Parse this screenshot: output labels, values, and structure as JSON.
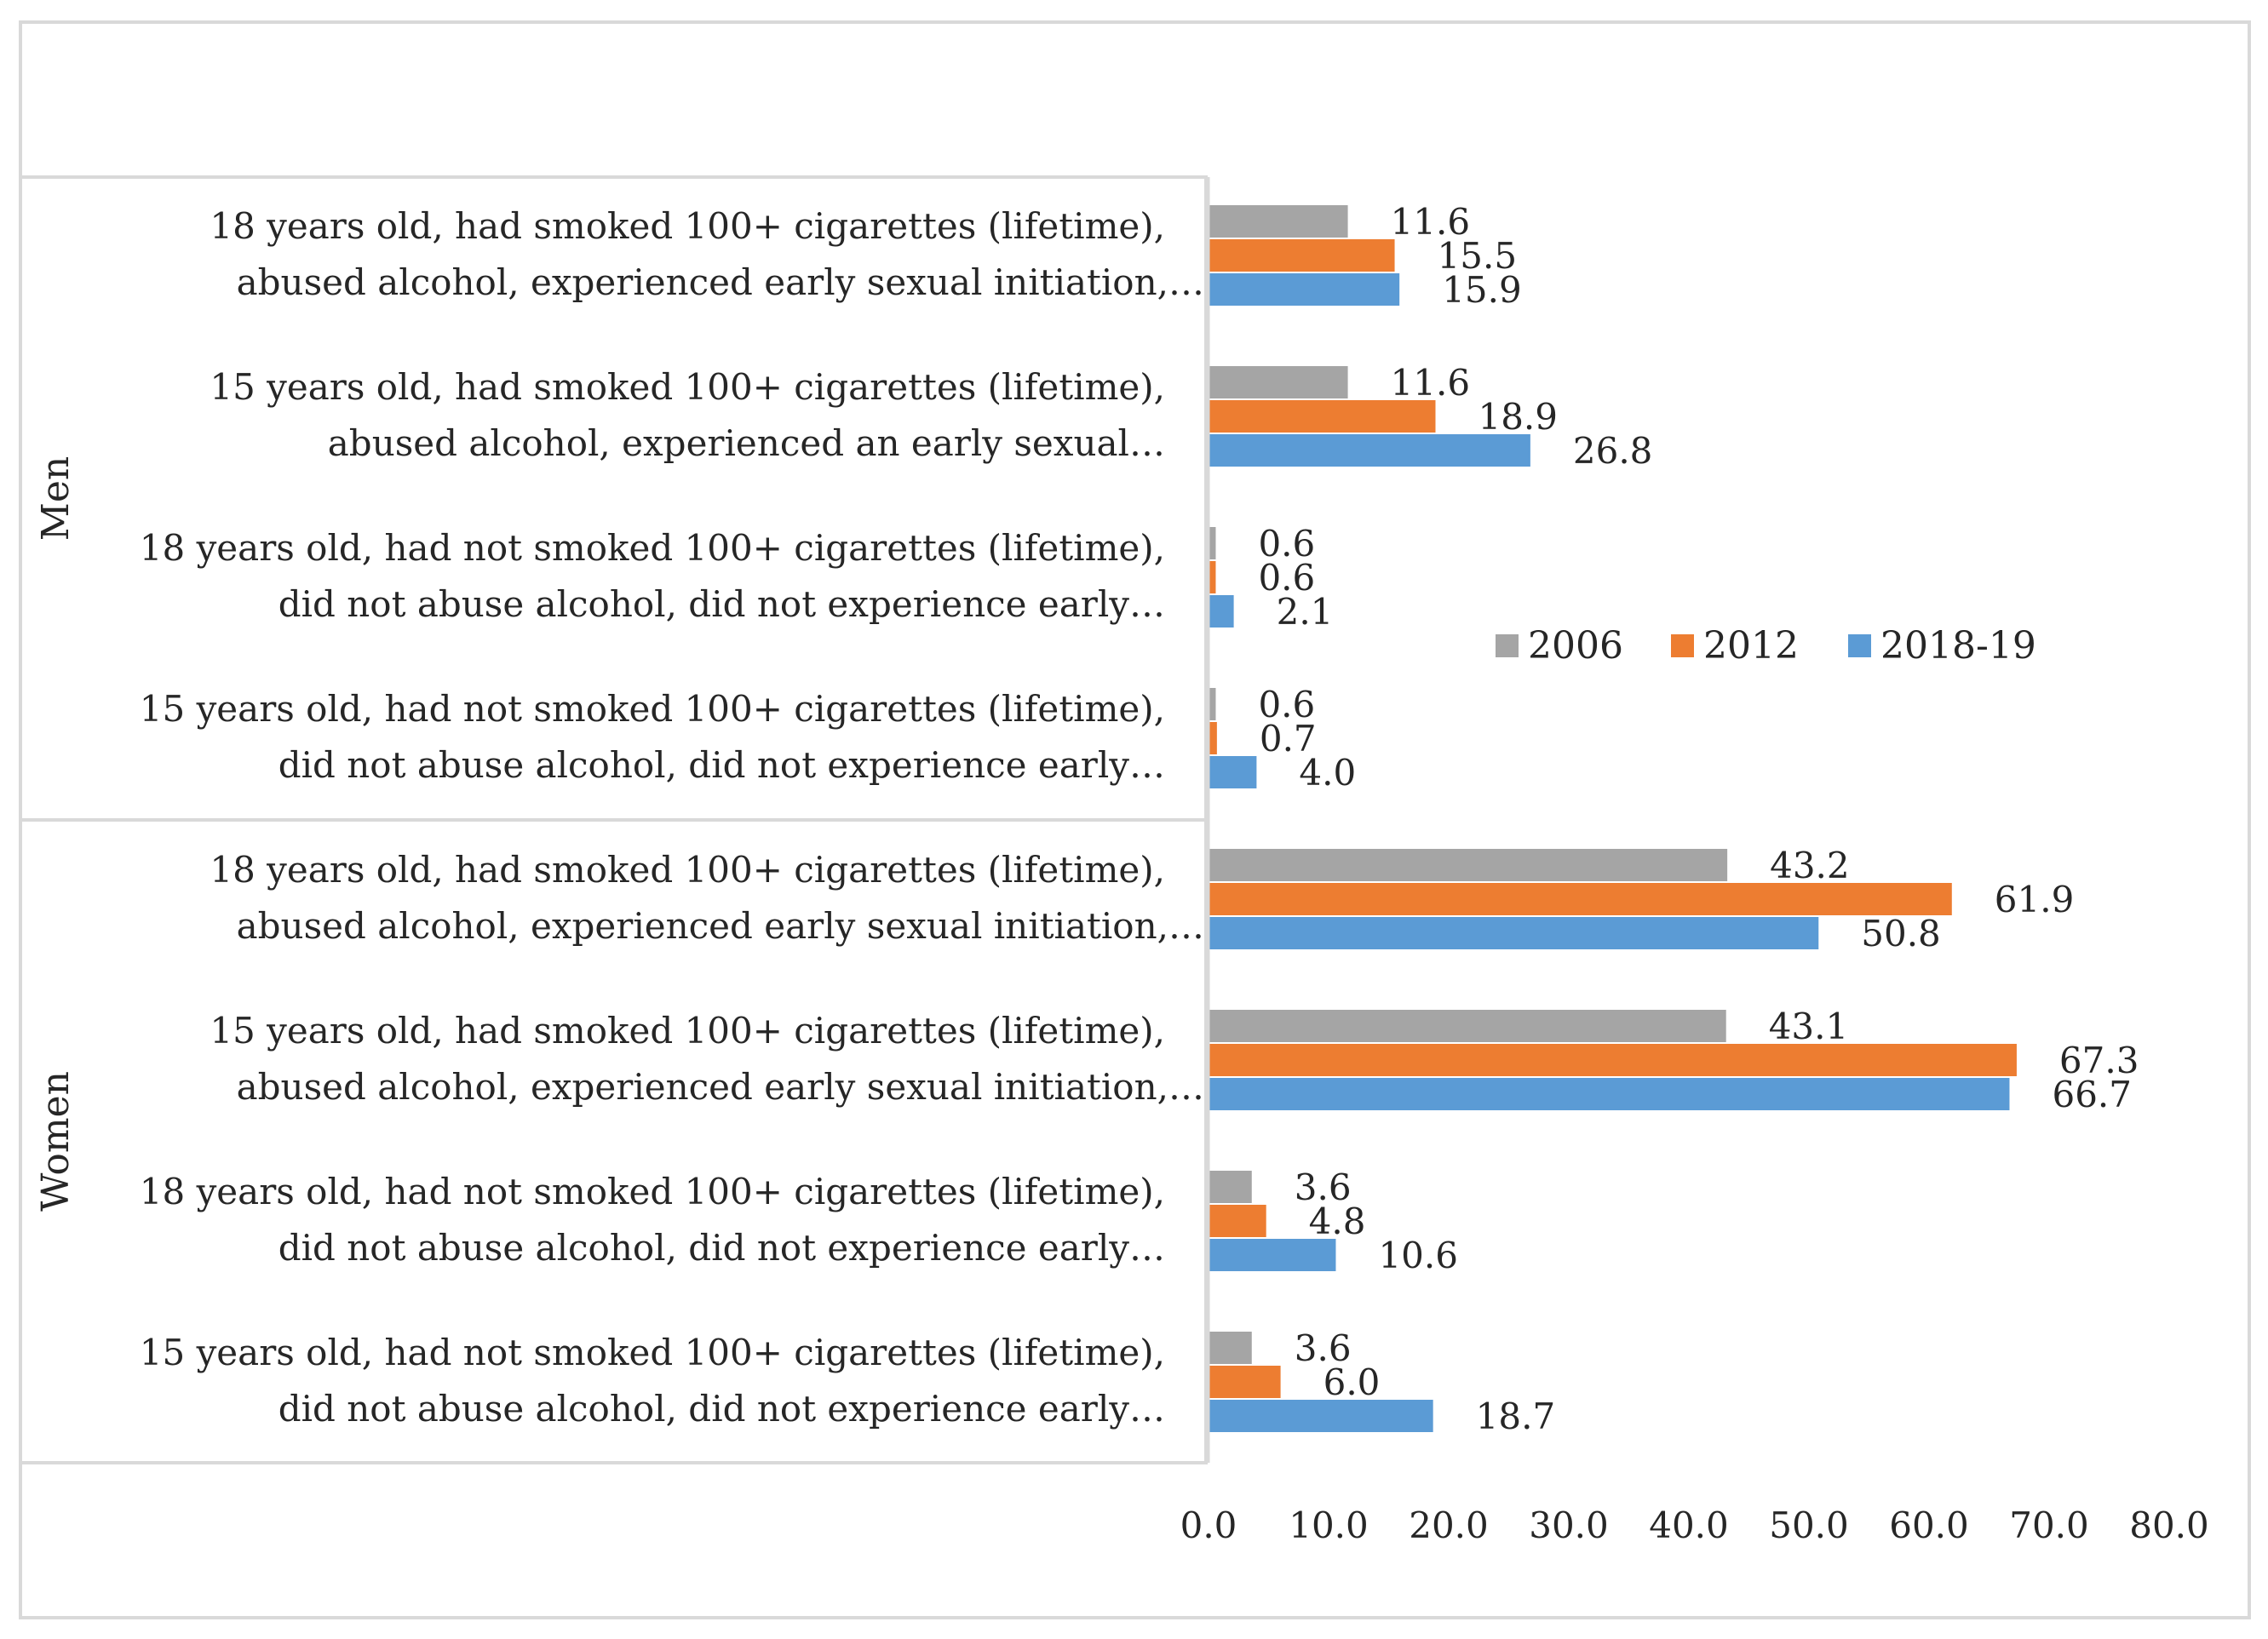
{
  "chart_data": {
    "type": "bar",
    "orientation": "horizontal",
    "title": "",
    "xlabel": "",
    "ylabel": "",
    "xlim": [
      0,
      80
    ],
    "x_ticks": [
      "0.0",
      "10.0",
      "20.0",
      "30.0",
      "40.0",
      "50.0",
      "60.0",
      "70.0",
      "80.0"
    ],
    "grid": false,
    "legend_position": "right-middle",
    "groups": [
      {
        "name": "Men",
        "categories": [
          {
            "line1": "18 years old, had smoked 100+ cigarettes (lifetime),",
            "line2": "abused alcohol, experienced early sexual initiation,…"
          },
          {
            "line1": "15 years old, had smoked 100+ cigarettes (lifetime),",
            "line2": "abused alcohol, experienced an early sexual…"
          },
          {
            "line1": "18 years old, had not smoked 100+ cigarettes (lifetime),",
            "line2": "did not abuse alcohol, did not experience early…"
          },
          {
            "line1": "15 years old, had not smoked 100+ cigarettes (lifetime),",
            "line2": "did not abuse alcohol, did not experience early…"
          }
        ]
      },
      {
        "name": "Women",
        "categories": [
          {
            "line1": "18 years old, had smoked 100+ cigarettes (lifetime),",
            "line2": "abused alcohol,  experienced early sexual initiation,…"
          },
          {
            "line1": "15 years old, had smoked 100+ cigarettes (lifetime),",
            "line2": "abused alcohol, experienced early sexual initiation,…"
          },
          {
            "line1": "18 years old, had not smoked 100+ cigarettes (lifetime),",
            "line2": "did not abuse alcohol, did not experience early…"
          },
          {
            "line1": "15 years old, had not smoked 100+ cigarettes (lifetime),",
            "line2": "did not abuse alcohol, did not experience early…"
          }
        ]
      }
    ],
    "series": [
      {
        "name": "2006",
        "color": "#a5a5a5",
        "values": [
          11.6,
          11.6,
          0.6,
          0.6,
          43.2,
          43.1,
          3.6,
          3.6
        ],
        "labels": [
          "11.6",
          "11.6",
          "0.6",
          "0.6",
          "43.2",
          "43.1",
          "3.6",
          "3.6"
        ]
      },
      {
        "name": "2012",
        "color": "#ed7d31",
        "values": [
          15.5,
          18.9,
          0.6,
          0.7,
          61.9,
          67.3,
          4.8,
          6.0
        ],
        "labels": [
          "15.5",
          "18.9",
          "0.6",
          "0.7",
          "61.9",
          "67.3",
          "4.8",
          "6.0"
        ]
      },
      {
        "name": "2018-19",
        "color": "#5b9bd5",
        "values": [
          15.9,
          26.8,
          2.1,
          4.0,
          50.8,
          66.7,
          10.6,
          18.7
        ],
        "labels": [
          "15.9",
          "26.8",
          "2.1",
          "4.0",
          "50.8",
          "66.7",
          "10.6",
          "18.7"
        ]
      }
    ]
  }
}
